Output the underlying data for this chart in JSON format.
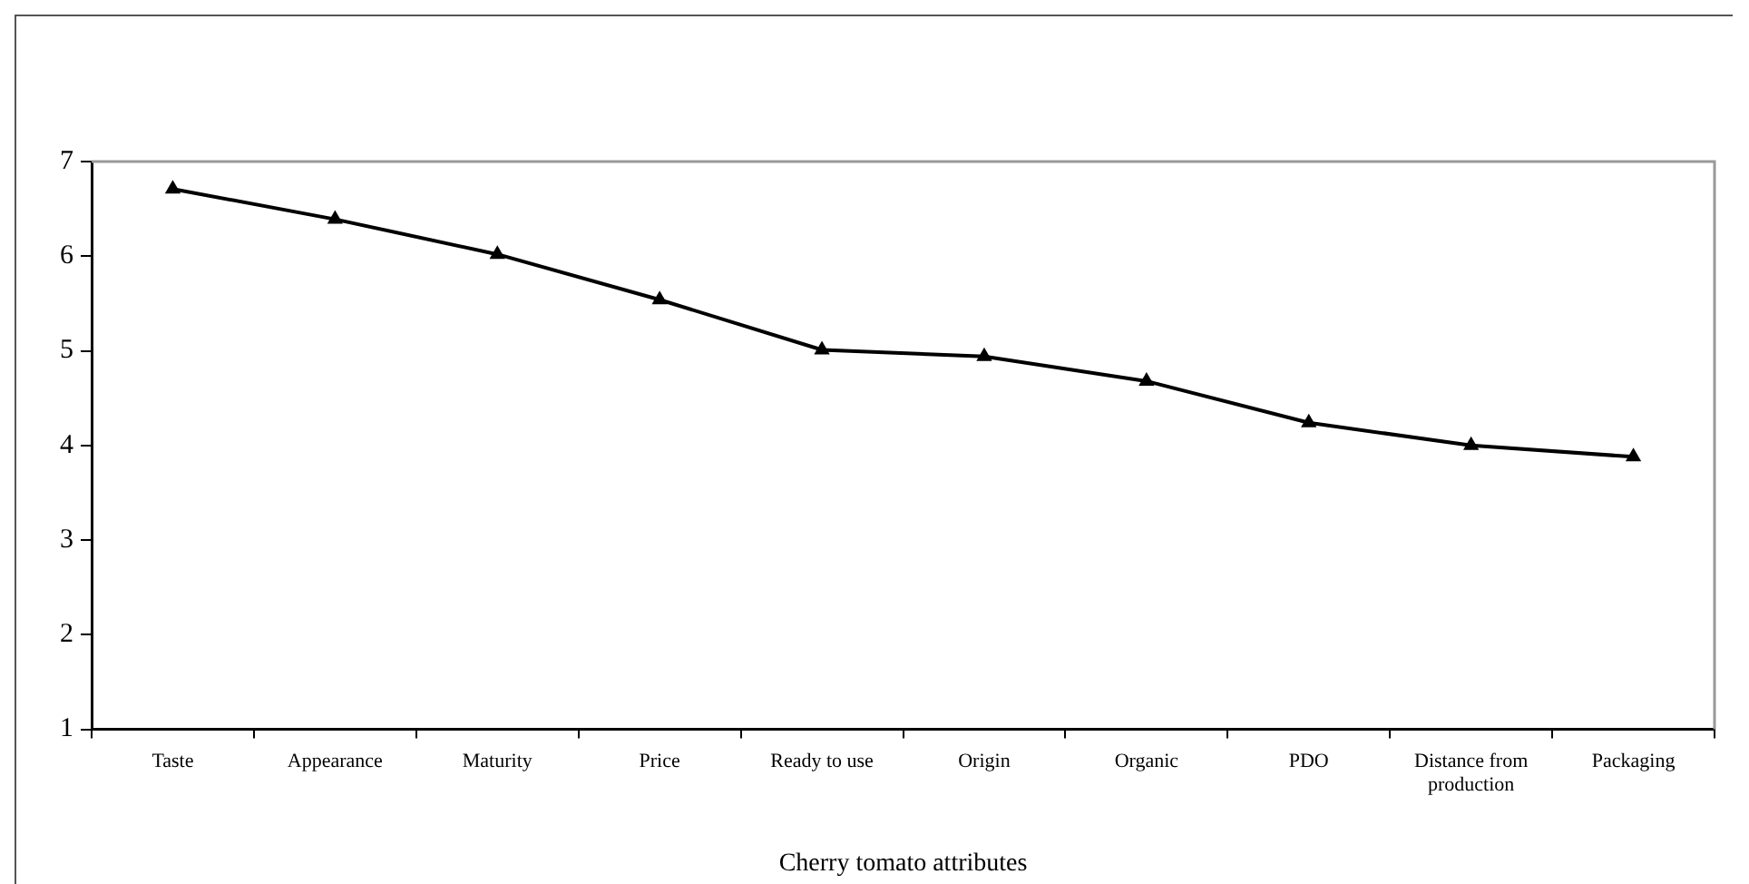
{
  "chart_data": {
    "type": "line",
    "xlabel": "Cherry tomato attributes",
    "categories": [
      "Taste",
      "Appearance",
      "Maturity",
      "Price",
      "Ready to use",
      "Origin",
      "Organic",
      "PDO",
      "Distance from production",
      "Packaging"
    ],
    "series": [
      {
        "color": "#000000",
        "values": [
          6.71,
          6.39,
          6.02,
          5.54,
          5.01,
          4.94,
          4.68,
          4.24,
          4.0,
          3.88
        ]
      }
    ],
    "ylim": [
      1,
      7
    ],
    "yticks": [
      1,
      2,
      3,
      4,
      5,
      6,
      7
    ],
    "grid": false,
    "legend": false,
    "marker": "triangle",
    "line_style": "solid"
  }
}
